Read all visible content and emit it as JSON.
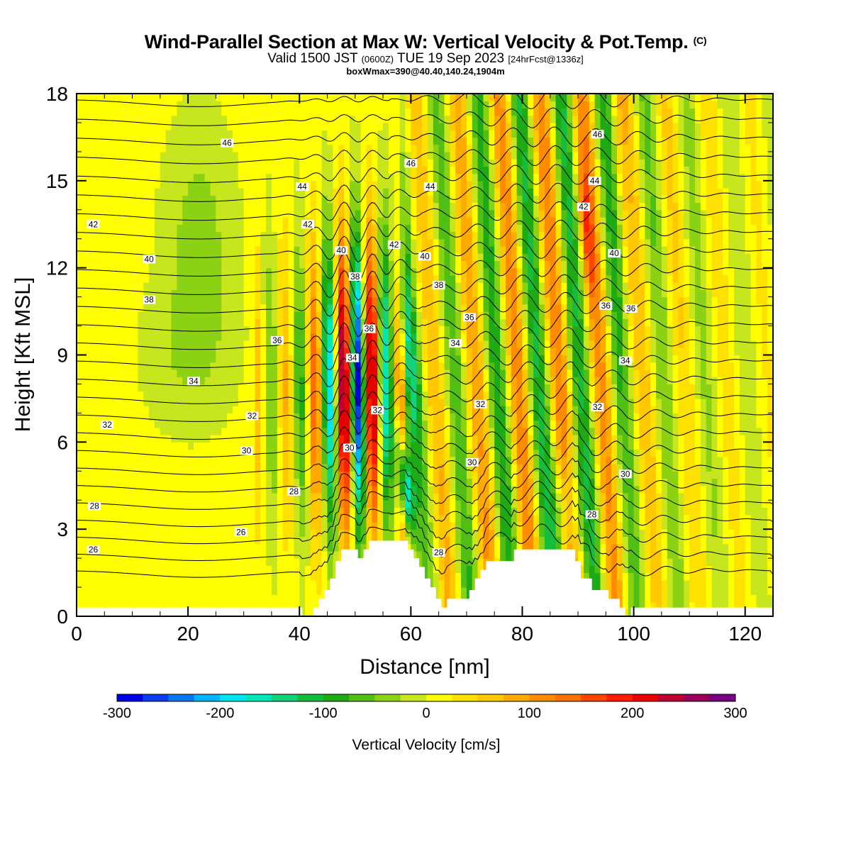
{
  "title": {
    "main": "Wind-Parallel Section at Max W: Vertical Velocity & Pot.Temp.",
    "main_unit": "(C)",
    "valid_prefix": "Valid 1500 JST",
    "valid_utc": "(0600Z)",
    "valid_date": "TUE 19 Sep 2023",
    "forecast": "[24hrFcst@1336z]",
    "box": "boxWmax=390@40.40,140.24,1904m"
  },
  "chart_data": {
    "type": "heatmap",
    "xlabel": "Distance [nm]",
    "ylabel": "Height [Kft MSL]",
    "xlim": [
      0,
      125
    ],
    "ylim": [
      0,
      18
    ],
    "x_ticks": [
      0,
      20,
      40,
      60,
      80,
      100,
      120
    ],
    "y_ticks": [
      0,
      3,
      6,
      9,
      12,
      15,
      18
    ],
    "colorbar": {
      "label": "Vertical Velocity [cm/s]",
      "range": [
        -300,
        300
      ],
      "ticks": [
        -300,
        -200,
        -100,
        0,
        100,
        200,
        300
      ],
      "colors": [
        "#0000e6",
        "#0a3cf0",
        "#0a78f5",
        "#00b4ff",
        "#00e6f0",
        "#00e6b4",
        "#14d278",
        "#14be3c",
        "#1eaa14",
        "#50be14",
        "#8cd214",
        "#c8e61e",
        "#ffff00",
        "#ffe100",
        "#ffc800",
        "#ffaa00",
        "#ff8c00",
        "#ff6e00",
        "#ff4600",
        "#ff1e00",
        "#e60000",
        "#be0032",
        "#9b005a",
        "#780082"
      ]
    },
    "theta_labels": [
      {
        "text": "46",
        "x": 27,
        "y": 16.3
      },
      {
        "text": "44",
        "x": 40.5,
        "y": 14.8
      },
      {
        "text": "42",
        "x": 3,
        "y": 13.5
      },
      {
        "text": "42",
        "x": 41.5,
        "y": 13.5
      },
      {
        "text": "40",
        "x": 13,
        "y": 12.3
      },
      {
        "text": "38",
        "x": 13,
        "y": 10.9
      },
      {
        "text": "36",
        "x": 36,
        "y": 9.5
      },
      {
        "text": "34",
        "x": 21,
        "y": 8.1
      },
      {
        "text": "32",
        "x": 5.5,
        "y": 6.6
      },
      {
        "text": "32",
        "x": 31.5,
        "y": 6.9
      },
      {
        "text": "30",
        "x": 30.5,
        "y": 5.7
      },
      {
        "text": "28",
        "x": 3.2,
        "y": 3.8
      },
      {
        "text": "28",
        "x": 39,
        "y": 4.3
      },
      {
        "text": "26",
        "x": 3,
        "y": 2.3
      },
      {
        "text": "26",
        "x": 29.5,
        "y": 2.9
      },
      {
        "text": "46",
        "x": 60,
        "y": 15.6
      },
      {
        "text": "44",
        "x": 63.5,
        "y": 14.8
      },
      {
        "text": "42",
        "x": 57,
        "y": 12.8
      },
      {
        "text": "40",
        "x": 47.5,
        "y": 12.6
      },
      {
        "text": "40",
        "x": 62.5,
        "y": 12.4
      },
      {
        "text": "38",
        "x": 50,
        "y": 11.7
      },
      {
        "text": "38",
        "x": 65,
        "y": 11.4
      },
      {
        "text": "36",
        "x": 52.5,
        "y": 9.9
      },
      {
        "text": "36",
        "x": 70.5,
        "y": 10.3
      },
      {
        "text": "34",
        "x": 49.5,
        "y": 8.9
      },
      {
        "text": "34",
        "x": 68,
        "y": 9.4
      },
      {
        "text": "32",
        "x": 54,
        "y": 7.1
      },
      {
        "text": "32",
        "x": 72.5,
        "y": 7.3
      },
      {
        "text": "30",
        "x": 49,
        "y": 5.8
      },
      {
        "text": "30",
        "x": 71,
        "y": 5.3
      },
      {
        "text": "28",
        "x": 65,
        "y": 2.2
      },
      {
        "text": "46",
        "x": 93.5,
        "y": 16.6
      },
      {
        "text": "44",
        "x": 93,
        "y": 15.0
      },
      {
        "text": "42",
        "x": 91,
        "y": 14.1
      },
      {
        "text": "40",
        "x": 96.5,
        "y": 12.5
      },
      {
        "text": "36",
        "x": 95,
        "y": 10.7
      },
      {
        "text": "36",
        "x": 99.5,
        "y": 10.6
      },
      {
        "text": "34",
        "x": 98.5,
        "y": 8.8
      },
      {
        "text": "32",
        "x": 93.5,
        "y": 7.2
      },
      {
        "text": "30",
        "x": 98.5,
        "y": 4.9
      },
      {
        "text": "28",
        "x": 92.5,
        "y": 3.5
      }
    ],
    "terrain": [
      [
        0,
        0.3
      ],
      [
        40.5,
        0.3
      ],
      [
        40.5,
        0.0
      ],
      [
        42.5,
        0.0
      ],
      [
        42.5,
        0.3
      ],
      [
        43.5,
        0.3
      ],
      [
        43.5,
        0.6
      ],
      [
        44.5,
        0.6
      ],
      [
        44.5,
        0.9
      ],
      [
        45.5,
        0.9
      ],
      [
        45.5,
        1.3
      ],
      [
        46.5,
        1.3
      ],
      [
        46.5,
        1.9
      ],
      [
        47.5,
        1.9
      ],
      [
        47.5,
        2.3
      ],
      [
        50.5,
        2.3
      ],
      [
        50.5,
        2.0
      ],
      [
        51.5,
        2.0
      ],
      [
        51.5,
        2.3
      ],
      [
        52.5,
        2.3
      ],
      [
        52.5,
        2.6
      ],
      [
        59.5,
        2.6
      ],
      [
        59.5,
        2.3
      ],
      [
        60.5,
        2.3
      ],
      [
        60.5,
        2.0
      ],
      [
        61.5,
        2.0
      ],
      [
        61.5,
        1.7
      ],
      [
        62.5,
        1.7
      ],
      [
        62.5,
        1.3
      ],
      [
        63.5,
        1.3
      ],
      [
        63.5,
        1.0
      ],
      [
        64.5,
        1.0
      ],
      [
        64.5,
        0.6
      ],
      [
        65.5,
        0.6
      ],
      [
        65.5,
        0.3
      ],
      [
        66.5,
        0.3
      ],
      [
        66.5,
        0.6
      ],
      [
        70.5,
        0.6
      ],
      [
        70.5,
        0.9
      ],
      [
        71.5,
        0.9
      ],
      [
        71.5,
        1.3
      ],
      [
        72.5,
        1.3
      ],
      [
        72.5,
        1.6
      ],
      [
        73.5,
        1.6
      ],
      [
        73.5,
        1.9
      ],
      [
        78.5,
        1.9
      ],
      [
        78.5,
        2.3
      ],
      [
        89.5,
        2.3
      ],
      [
        89.5,
        1.9
      ],
      [
        90.5,
        1.9
      ],
      [
        90.5,
        1.3
      ],
      [
        92.5,
        1.3
      ],
      [
        92.5,
        0.9
      ],
      [
        95.5,
        0.9
      ],
      [
        95.5,
        0.6
      ],
      [
        97.5,
        0.6
      ],
      [
        97.5,
        0.3
      ],
      [
        98.5,
        0.3
      ],
      [
        98.5,
        0.0
      ],
      [
        99.5,
        0.0
      ],
      [
        99.5,
        0.3
      ],
      [
        125,
        0.3
      ]
    ]
  }
}
